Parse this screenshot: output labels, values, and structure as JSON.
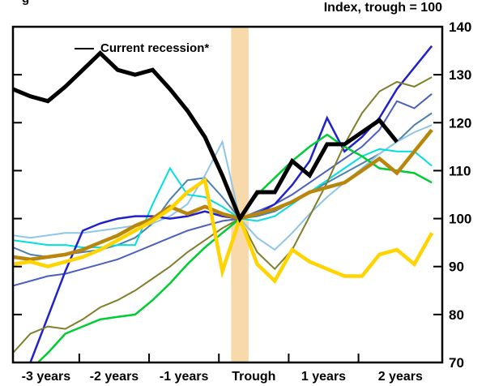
{
  "caption_fragment": "g",
  "chart_data": {
    "type": "line",
    "title": "Index, trough = 100",
    "legend": {
      "label": "Current recession*",
      "color": "#000000"
    },
    "x_axis": {
      "labels": [
        "-3 years",
        "-2 years",
        "-1 years",
        "Trough",
        "1 years",
        "2 years"
      ],
      "tick_positions_years": [
        -2.3,
        -1.3,
        -0.3,
        0.7,
        1.7
      ],
      "domain": [
        -3.25,
        2.9
      ],
      "unit": "years relative to recession trough"
    },
    "y_axis": {
      "tick_labels": [
        "140",
        "130",
        "120",
        "110",
        "100",
        "90",
        "80",
        "70"
      ],
      "ticks": [
        140,
        130,
        120,
        110,
        100,
        90,
        80,
        70
      ],
      "range": [
        70,
        140
      ],
      "side": "right",
      "grid": false
    },
    "trough_band": {
      "x0": -0.125,
      "x1": 0.125,
      "color": "#f7d9ab"
    },
    "x": [
      -3.25,
      -3,
      -2.75,
      -2.5,
      -2.25,
      -2,
      -1.75,
      -1.5,
      -1.25,
      -1,
      -0.75,
      -0.5,
      -0.25,
      0,
      0.25,
      0.5,
      0.75,
      1,
      1.25,
      1.5,
      1.75,
      2,
      2.25,
      2.5,
      2.75
    ],
    "series": [
      {
        "name": "past-recession-slate-blue",
        "color": "#4a5fc0",
        "width": 2,
        "values": [
          86,
          87,
          88,
          88.5,
          89.5,
          90.5,
          91.5,
          93,
          94.5,
          96,
          97.5,
          98.5,
          99.5,
          100,
          101.5,
          103,
          105,
          107.5,
          110,
          112.5,
          115,
          118.5,
          124.5,
          123,
          126
        ]
      },
      {
        "name": "past-recession-steel-blue",
        "color": "#4c80ae",
        "width": 2,
        "values": [
          94,
          92.5,
          92,
          92.5,
          93,
          93.5,
          94.5,
          96,
          99,
          104,
          108,
          108.5,
          104.5,
          100,
          100.5,
          101.5,
          103.5,
          105.5,
          107.5,
          109.5,
          111.5,
          113.5,
          116,
          119.5,
          122
        ]
      },
      {
        "name": "past-recession-light-blue",
        "color": "#8fc6e8",
        "width": 2,
        "values": [
          96.5,
          96,
          96.5,
          97,
          97,
          97.5,
          98,
          98.5,
          99,
          100.5,
          103,
          109,
          116,
          100,
          96,
          93.5,
          97,
          101,
          104.5,
          107.5,
          110.5,
          113.5,
          116,
          118,
          119.5
        ]
      },
      {
        "name": "past-recession-cyan",
        "color": "#00dfe0",
        "width": 2,
        "values": [
          95.5,
          95,
          94.5,
          94.5,
          94,
          94,
          94.5,
          94.5,
          103,
          110.5,
          105,
          104.5,
          102.5,
          100,
          99.5,
          100.5,
          103,
          105.5,
          108,
          110.5,
          113,
          114.5,
          114,
          114,
          111
        ]
      },
      {
        "name": "past-recession-royal-blue",
        "color": "#2121cc",
        "width": 2.5,
        "values": [
          62,
          70,
          79.5,
          89,
          97.5,
          99,
          100,
          100.5,
          100.5,
          100,
          100.5,
          101.5,
          100.5,
          100,
          101,
          103,
          107,
          112,
          121,
          114,
          117,
          121,
          127,
          131.5,
          136
        ]
      },
      {
        "name": "past-recession-olive",
        "color": "#7f7f2d",
        "width": 2,
        "values": [
          72,
          76,
          77.5,
          77,
          79,
          81.5,
          83,
          85,
          87.5,
          90,
          93,
          95.5,
          98,
          100,
          93,
          89.5,
          93.5,
          100.5,
          107.5,
          115.5,
          122,
          126.5,
          128.5,
          127.5,
          129.5
        ]
      },
      {
        "name": "past-recession-green",
        "color": "#00cc33",
        "width": 2.5,
        "values": [
          67,
          68.5,
          72,
          76,
          77.5,
          79,
          79.5,
          80,
          83,
          86.5,
          90.5,
          94,
          97,
          100,
          105,
          108.5,
          112,
          115,
          117.5,
          115,
          113,
          110.5,
          110,
          109.5,
          107.5
        ]
      },
      {
        "name": "past-recession-gold",
        "color": "#b8860b",
        "width": 4.5,
        "values": [
          92,
          91.5,
          92,
          92.5,
          93.5,
          95,
          96.5,
          98.5,
          100,
          102.5,
          101,
          102.5,
          101,
          100,
          101,
          102,
          103.5,
          105.5,
          106.5,
          107.5,
          110,
          112.5,
          109.5,
          114,
          118.5
        ]
      },
      {
        "name": "past-recession-yellow",
        "color": "#ffd400",
        "width": 4.5,
        "values": [
          90.5,
          91,
          90,
          91,
          92,
          93.5,
          95.5,
          97.5,
          99.5,
          102,
          105.5,
          108,
          89,
          100,
          90.5,
          87,
          93.5,
          91,
          89.5,
          88,
          88,
          92.5,
          93.5,
          90.5,
          97
        ]
      },
      {
        "name": "current-recession",
        "color": "#000000",
        "width": 5,
        "values": [
          127,
          125.5,
          124.5,
          127.5,
          131,
          134.5,
          131,
          130,
          131,
          127,
          122.5,
          117,
          109,
          100,
          105.5,
          105.5,
          112,
          109,
          115.5,
          115.5,
          118,
          120.5,
          116
        ]
      }
    ]
  }
}
